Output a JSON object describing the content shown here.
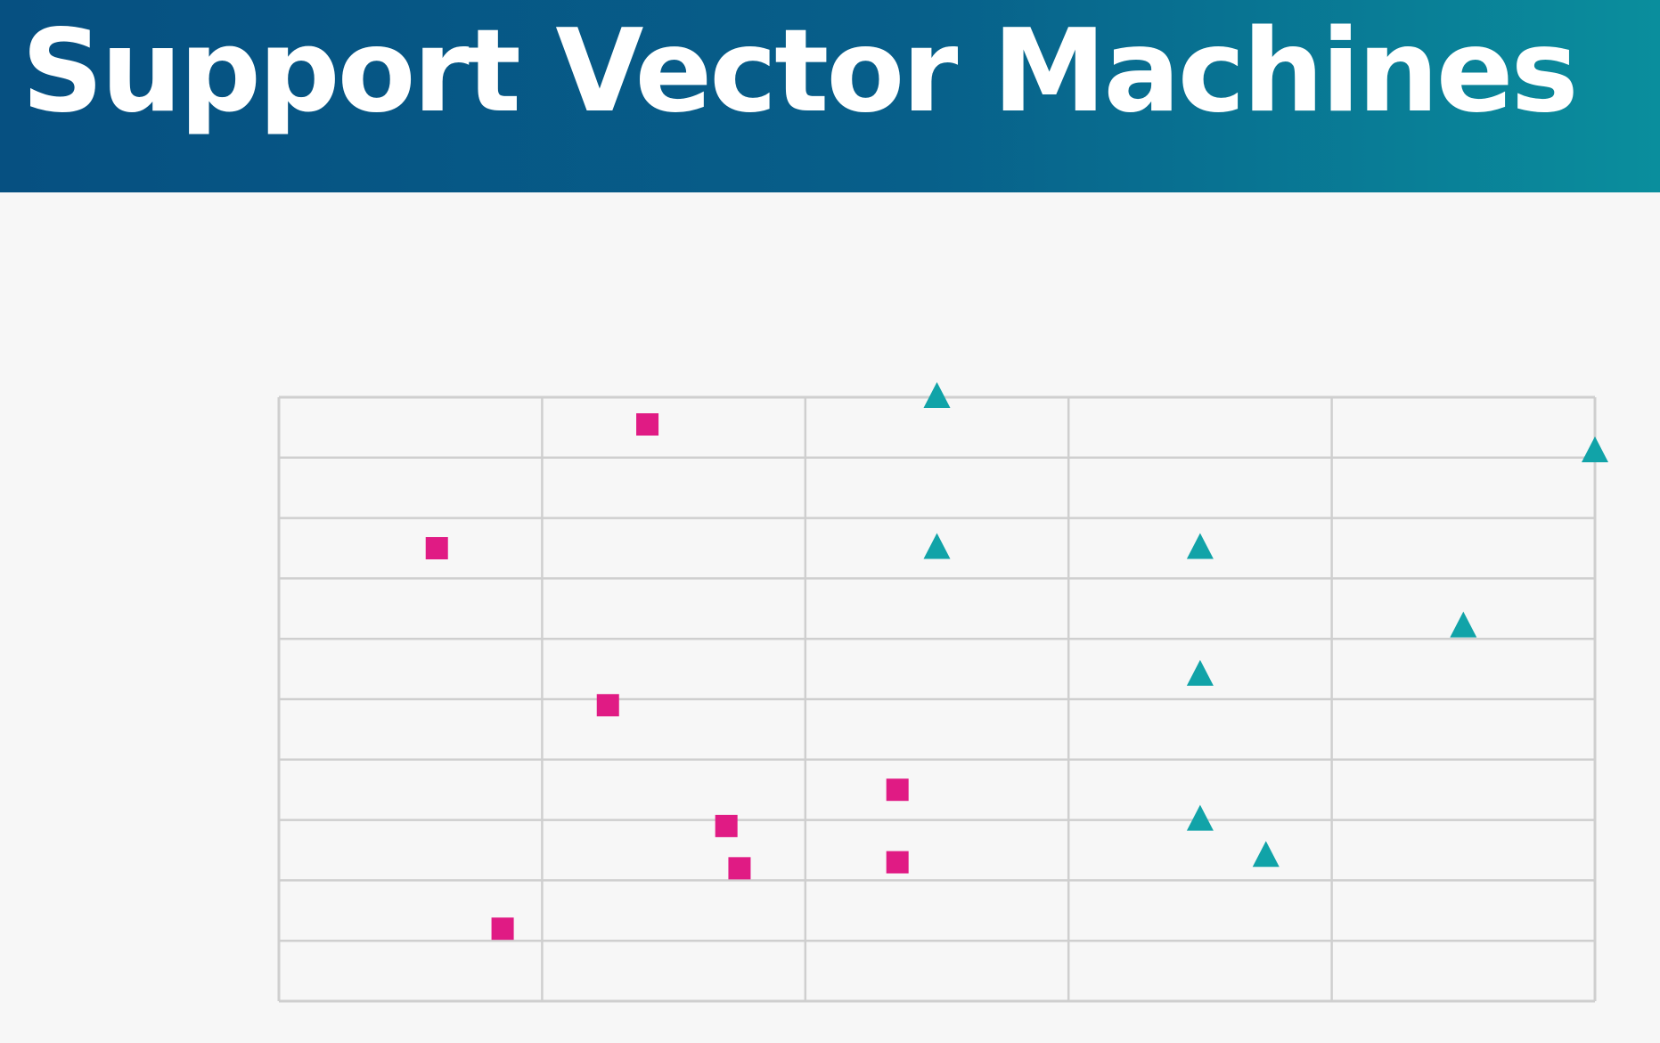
{
  "slide": {
    "title": "Support Vector Machines"
  },
  "colors": {
    "title_bar_start": "#065081",
    "title_bar_end": "#0a8e9d",
    "grid": "#cfcfcf",
    "square_series": "#e01b84",
    "triangle_series": "#11a3a8"
  },
  "chart_data": {
    "type": "scatter",
    "title": "",
    "xlabel": "",
    "ylabel": "",
    "xlim": [
      0,
      5
    ],
    "ylim": [
      0,
      10
    ],
    "x_gridlines": 5,
    "y_gridlines": 10,
    "grid": true,
    "axis_tick_labels": false,
    "series": [
      {
        "marker": "square",
        "color": "#e01b84",
        "points": [
          {
            "x": 1.4,
            "y": 9.55
          },
          {
            "x": 0.6,
            "y": 7.5
          },
          {
            "x": 1.25,
            "y": 4.9
          },
          {
            "x": 2.35,
            "y": 3.5
          },
          {
            "x": 1.7,
            "y": 2.9
          },
          {
            "x": 1.75,
            "y": 2.2
          },
          {
            "x": 2.35,
            "y": 2.3
          },
          {
            "x": 0.85,
            "y": 1.2
          }
        ]
      },
      {
        "marker": "triangle",
        "color": "#11a3a8",
        "points": [
          {
            "x": 2.5,
            "y": 10.0
          },
          {
            "x": 5.0,
            "y": 9.1
          },
          {
            "x": 2.5,
            "y": 7.5
          },
          {
            "x": 3.5,
            "y": 7.5
          },
          {
            "x": 4.5,
            "y": 6.2
          },
          {
            "x": 3.5,
            "y": 5.4
          },
          {
            "x": 3.5,
            "y": 3.0
          },
          {
            "x": 3.75,
            "y": 2.4
          }
        ]
      }
    ]
  }
}
